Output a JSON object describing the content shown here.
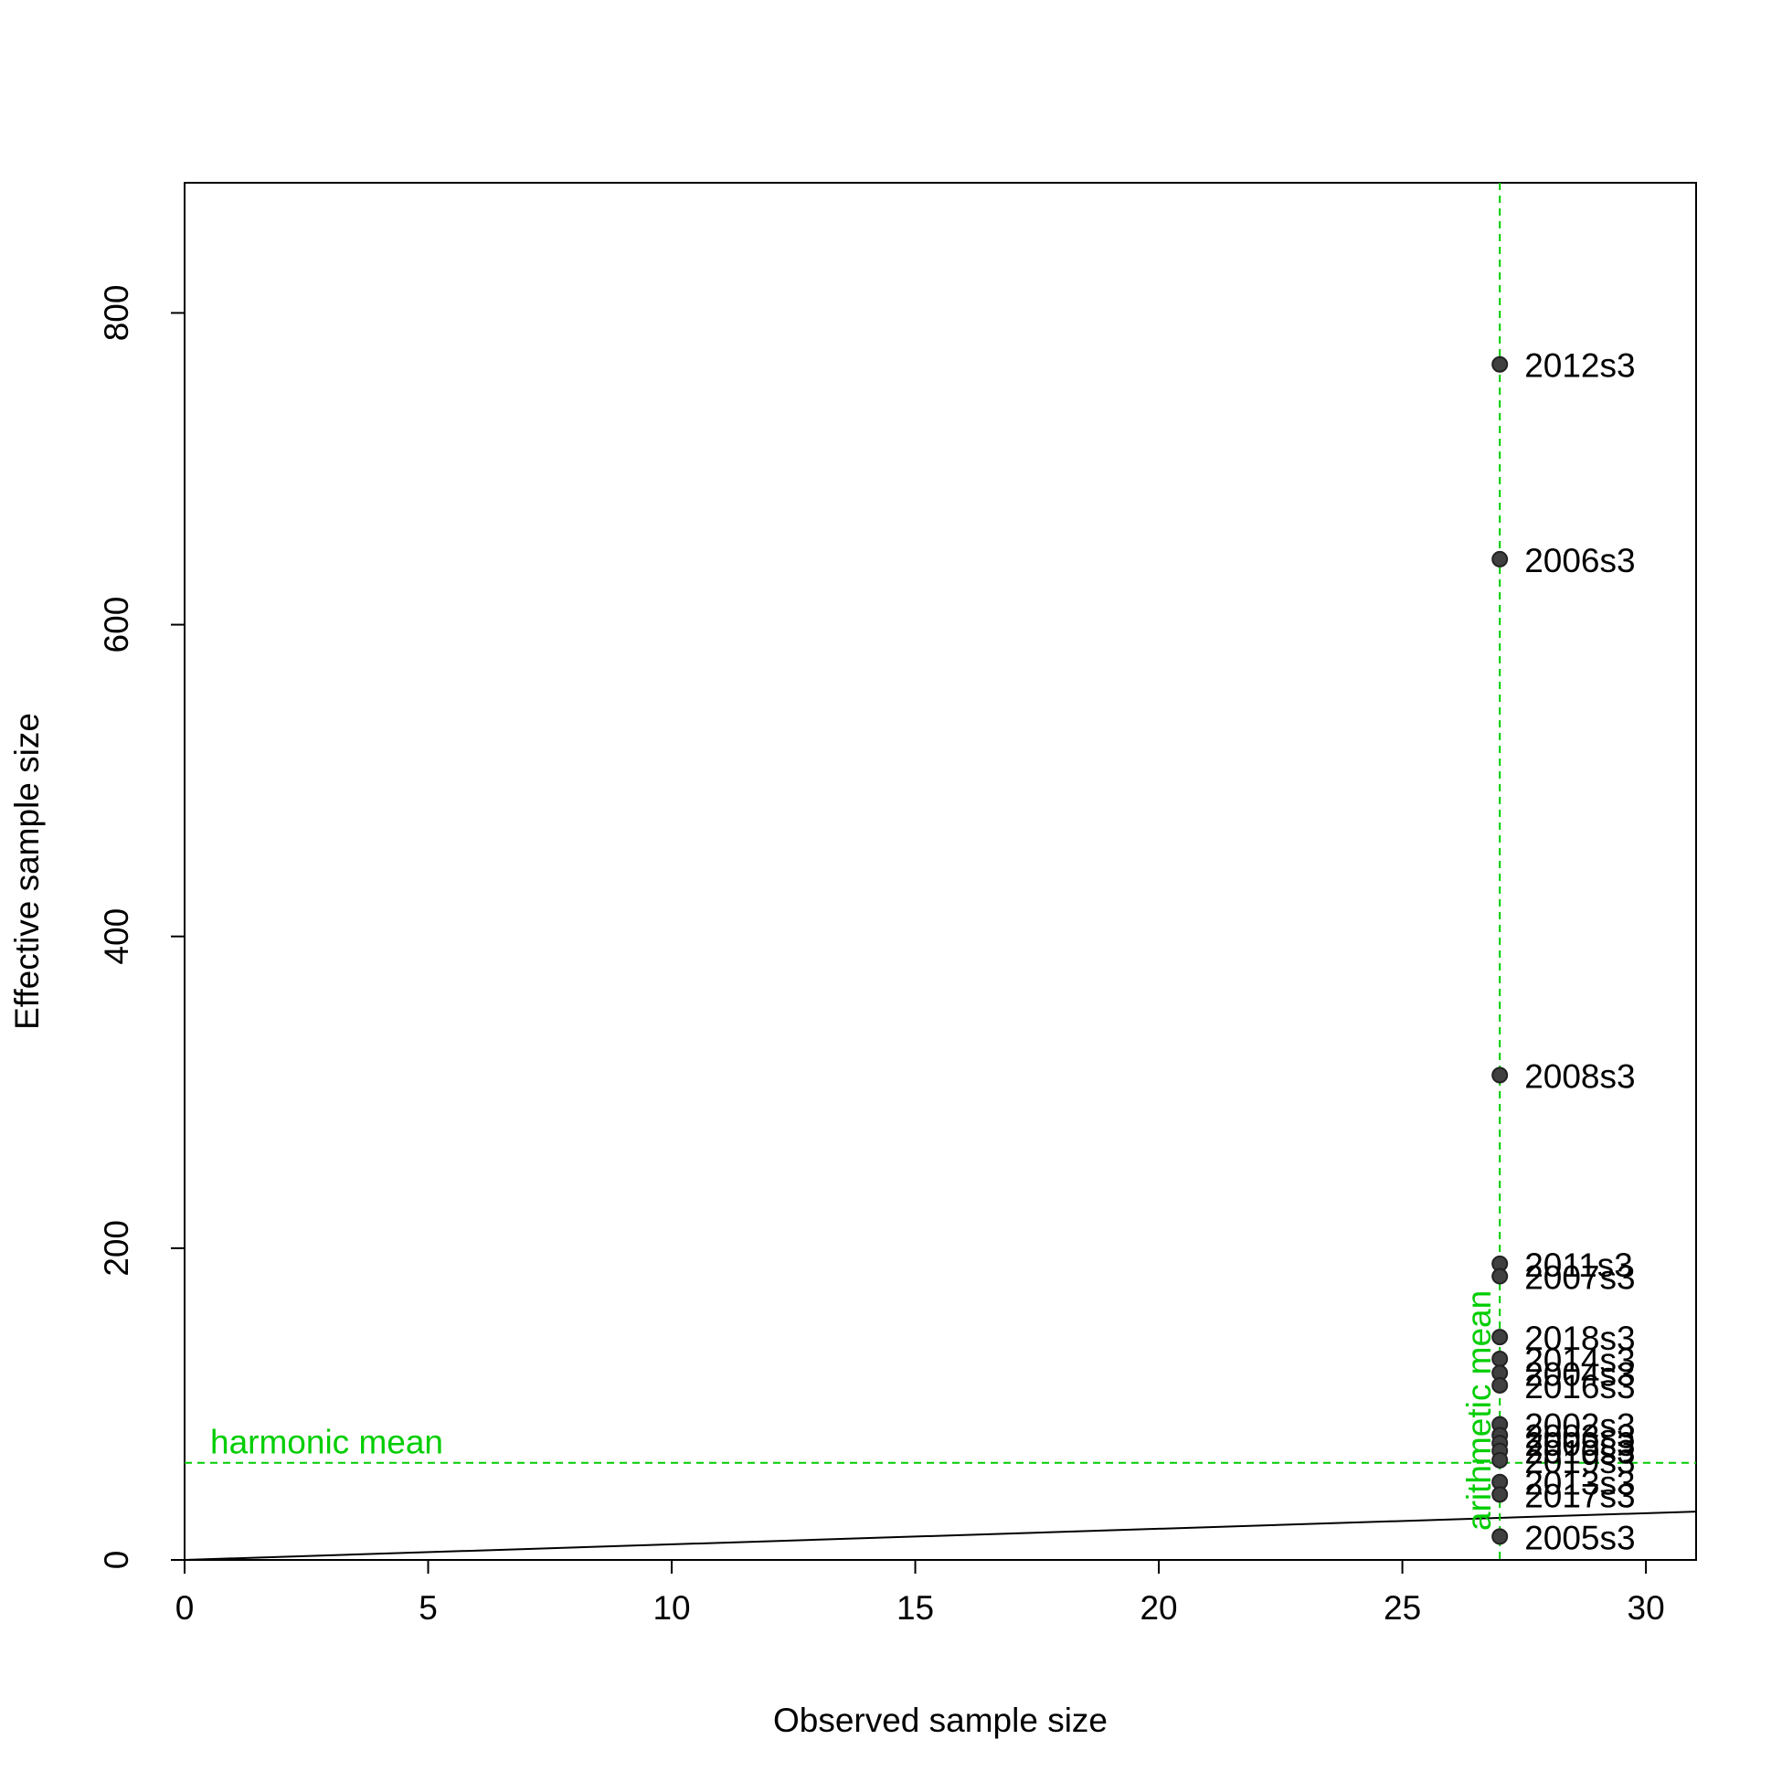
{
  "chart_data": {
    "type": "scatter",
    "xlabel": "Observed sample size",
    "ylabel": "Effective sample size",
    "x": [
      27,
      27,
      27,
      27,
      27,
      27,
      27,
      27,
      27,
      27,
      27,
      27,
      27,
      27,
      27,
      27,
      27
    ],
    "y": [
      767,
      642,
      311,
      190,
      182,
      143,
      129,
      120,
      112,
      87,
      80,
      75,
      70,
      64,
      50,
      42,
      15
    ],
    "point_labels": [
      "2012s3",
      "2006s3",
      "2008s3",
      "2011s3",
      "2007s3",
      "2018s3",
      "2014s3",
      "2004s3",
      "2016s3",
      "2002s3",
      "2003s3",
      "2009s3",
      "2010s3",
      "2019s3",
      "2013s3",
      "2017s3",
      "2005s3"
    ],
    "point_color": "#404040",
    "xlim": [
      0,
      31.03
    ],
    "ylim": [
      0,
      883.5
    ],
    "xticks": [
      0,
      5,
      10,
      15,
      20,
      25,
      30
    ],
    "yticks": [
      0,
      200,
      400,
      600,
      800
    ],
    "harmonic_mean": 62.3,
    "harmonic_mean_label": "harmonic mean",
    "arithmetic_mean": 27,
    "arithmetic_mean_label": "arithmetic mean",
    "mean_color": "#00cd00"
  }
}
